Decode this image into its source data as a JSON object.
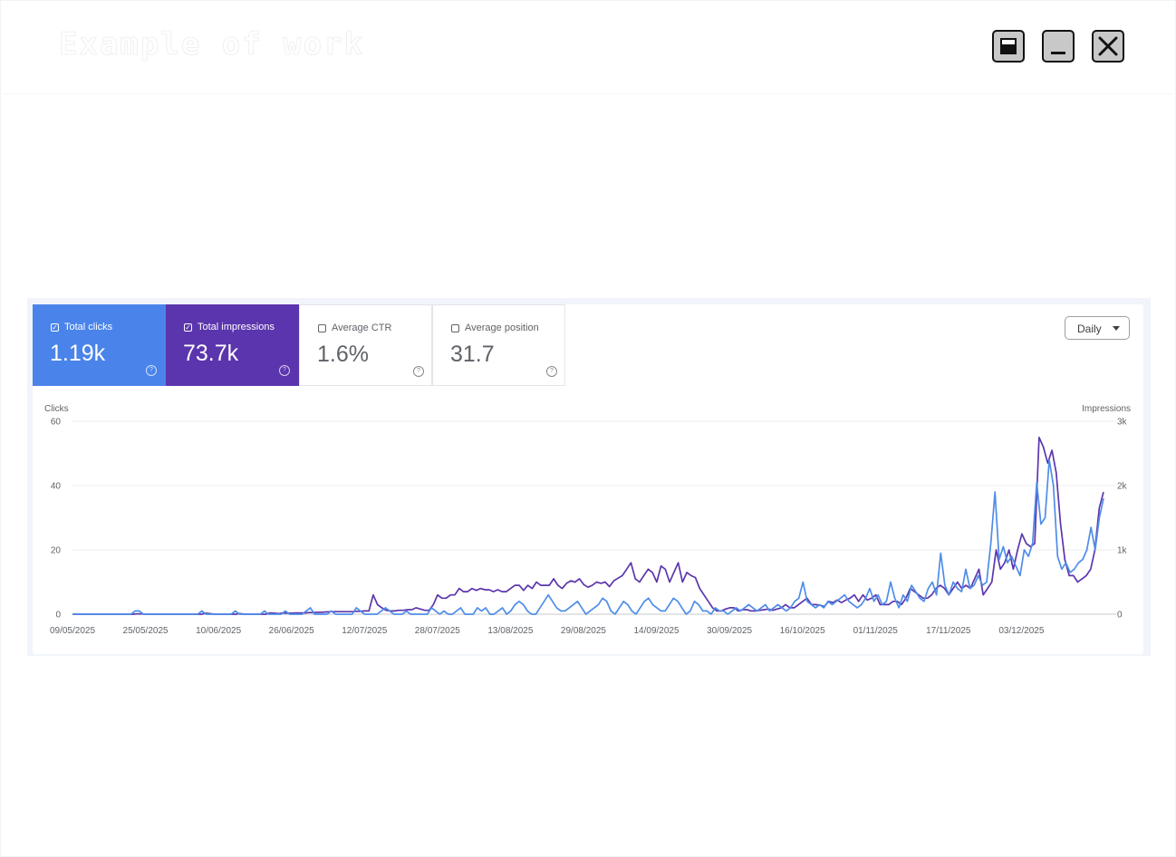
{
  "window": {
    "title": "Example of work"
  },
  "panel": {
    "interval": "Daily",
    "metrics": [
      {
        "label": "Total clicks",
        "value": "1.19k",
        "checked": true,
        "color": "#4a84ea"
      },
      {
        "label": "Total impressions",
        "value": "73.7k",
        "checked": true,
        "color": "#5b35ad"
      },
      {
        "label": "Average CTR",
        "value": "1.6%",
        "checked": false
      },
      {
        "label": "Average position",
        "value": "31.7",
        "checked": false
      }
    ]
  },
  "chart_data": {
    "type": "line",
    "title": "",
    "ylabel_left": "Clicks",
    "ylabel_right": "Impressions",
    "ylim_left": [
      0,
      60
    ],
    "ylim_right": [
      0,
      3000
    ],
    "yticks_left": [
      "0",
      "20",
      "40",
      "60"
    ],
    "yticks_right": [
      "0",
      "1k",
      "2k",
      "3k"
    ],
    "grid": true,
    "start_date": "09/05/2025",
    "end_date": "21/12/2025",
    "x_tick_labels": [
      "09/05/2025",
      "25/05/2025",
      "10/06/2025",
      "26/06/2025",
      "12/07/2025",
      "28/07/2025",
      "13/08/2025",
      "29/08/2025",
      "14/09/2025",
      "30/09/2025",
      "16/10/2025",
      "01/11/2025",
      "17/11/2025",
      "03/12/2025"
    ],
    "series": [
      {
        "name": "Total clicks",
        "axis": "left",
        "color": "#4f8de8",
        "values": [
          0,
          0,
          0,
          0,
          0,
          0,
          0,
          0,
          0,
          0,
          0,
          0,
          0,
          0,
          0,
          1,
          1,
          0,
          0,
          0,
          0,
          0,
          0,
          0,
          0,
          0,
          0,
          0,
          0,
          0,
          0,
          1,
          0,
          0,
          0,
          0,
          0,
          0,
          0,
          1,
          0,
          0,
          0,
          0,
          0,
          0,
          1,
          0,
          0,
          0,
          0,
          1,
          0,
          0,
          0,
          0,
          1,
          2,
          0,
          0,
          0,
          0,
          1,
          0,
          0,
          0,
          0,
          0,
          2,
          1,
          0,
          0,
          0,
          0,
          1,
          2,
          1,
          0,
          0,
          0,
          1,
          0,
          0,
          0,
          0,
          0,
          2,
          1,
          0,
          1,
          0,
          0,
          1,
          2,
          0,
          0,
          0,
          2,
          1,
          2,
          0,
          0,
          1,
          2,
          0,
          1,
          3,
          4,
          3,
          1,
          0,
          0,
          2,
          4,
          6,
          4,
          2,
          1,
          1,
          2,
          3,
          4,
          2,
          0,
          1,
          2,
          3,
          5,
          4,
          1,
          0,
          2,
          4,
          3,
          1,
          0,
          2,
          4,
          5,
          3,
          2,
          1,
          1,
          3,
          5,
          4,
          2,
          0,
          1,
          4,
          3,
          1,
          1,
          0,
          2,
          1,
          1,
          0,
          1,
          2,
          1,
          2,
          3,
          2,
          1,
          2,
          3,
          1,
          2,
          3,
          2,
          1,
          2,
          4,
          5,
          10,
          4,
          3,
          2,
          3,
          2,
          4,
          3,
          4,
          5,
          6,
          4,
          3,
          2,
          3,
          5,
          8,
          4,
          6,
          3,
          4,
          10,
          5,
          2,
          6,
          4,
          9,
          7,
          5,
          4,
          8,
          10,
          6,
          19,
          9,
          6,
          10,
          8,
          7,
          14,
          8,
          9,
          12,
          9,
          10,
          22,
          38,
          17,
          21,
          16,
          18,
          15,
          12,
          20,
          18,
          22,
          41,
          28,
          30,
          48,
          40,
          18,
          14,
          16,
          13,
          14,
          16,
          17,
          20,
          27,
          20,
          30,
          36
        ]
      },
      {
        "name": "Total impressions",
        "axis": "right",
        "color": "#5c36ad",
        "values": [
          0,
          0,
          0,
          0,
          0,
          0,
          0,
          0,
          0,
          0,
          0,
          0,
          0,
          0,
          0,
          5,
          5,
          0,
          0,
          0,
          0,
          0,
          0,
          0,
          0,
          0,
          0,
          0,
          0,
          0,
          0,
          15,
          10,
          0,
          0,
          0,
          0,
          0,
          0,
          10,
          0,
          0,
          0,
          0,
          0,
          0,
          20,
          15,
          10,
          20,
          15,
          15,
          20,
          20,
          20,
          25,
          25,
          30,
          30,
          35,
          40,
          40,
          40,
          40,
          40,
          40,
          45,
          45,
          50,
          50,
          300,
          150,
          100,
          60,
          50,
          50,
          60,
          60,
          70,
          70,
          100,
          80,
          60,
          60,
          150,
          300,
          250,
          250,
          300,
          300,
          400,
          350,
          350,
          400,
          370,
          400,
          380,
          380,
          350,
          380,
          350,
          350,
          400,
          450,
          450,
          370,
          450,
          400,
          500,
          450,
          450,
          450,
          550,
          450,
          400,
          480,
          520,
          500,
          550,
          460,
          420,
          450,
          500,
          480,
          500,
          430,
          520,
          560,
          600,
          700,
          800,
          550,
          500,
          600,
          700,
          650,
          500,
          750,
          700,
          500,
          650,
          800,
          500,
          650,
          600,
          570,
          400,
          300,
          200,
          100,
          50,
          50,
          80,
          100,
          100,
          50,
          70,
          70,
          50,
          50,
          60,
          70,
          80,
          60,
          80,
          100,
          150,
          100,
          100,
          150,
          200,
          250,
          150,
          150,
          140,
          120,
          200,
          180,
          220,
          180,
          220,
          250,
          300,
          200,
          300,
          220,
          250,
          300,
          150,
          150,
          150,
          200,
          200,
          150,
          250,
          400,
          350,
          300,
          250,
          250,
          300,
          400,
          450,
          400,
          300,
          400,
          500,
          400,
          450,
          400,
          550,
          700,
          300,
          400,
          500,
          1000,
          700,
          800,
          1000,
          700,
          1000,
          1250,
          1100,
          1050,
          1100,
          2750,
          2600,
          2350,
          2550,
          2200,
          1400,
          850,
          600,
          600,
          500,
          550,
          600,
          700,
          1000,
          1650,
          1900
        ]
      }
    ]
  }
}
